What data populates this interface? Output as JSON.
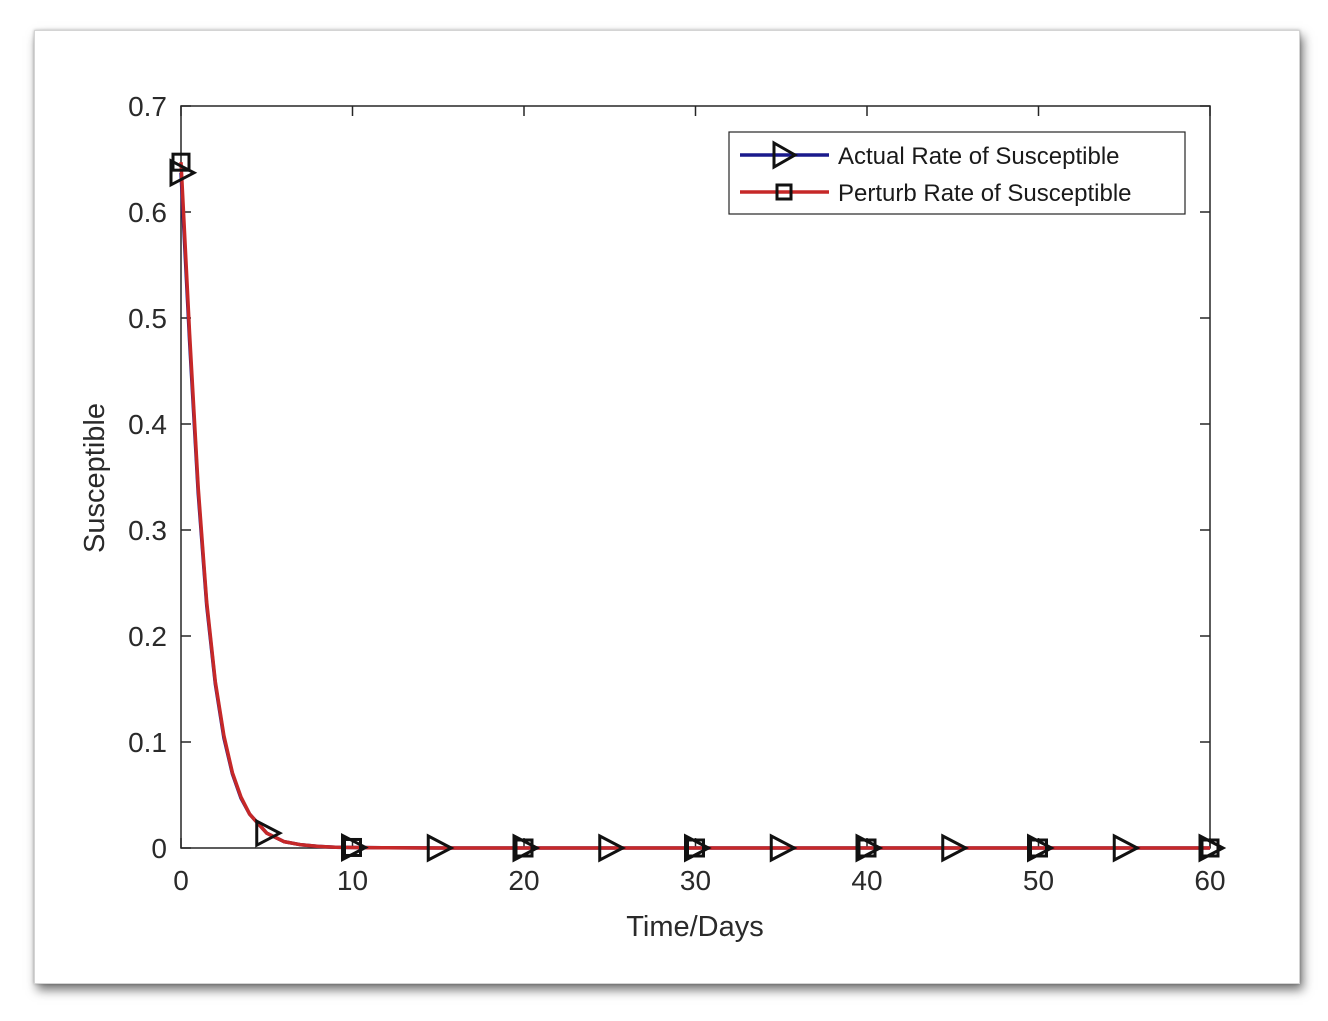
{
  "chart_data": {
    "type": "line",
    "title": "",
    "xlabel": "Time/Days",
    "ylabel": "Susceptible",
    "xlim": [
      0,
      60
    ],
    "ylim": [
      0,
      0.7
    ],
    "xticks": [
      "0",
      "10",
      "20",
      "30",
      "40",
      "50",
      "60"
    ],
    "yticks": [
      "0",
      "0.1",
      "0.2",
      "0.3",
      "0.4",
      "0.5",
      "0.6",
      "0.7"
    ],
    "grid": false,
    "legend_position": "top-right",
    "curve_x": [
      0,
      0.5,
      1,
      1.5,
      2,
      2.5,
      3,
      3.5,
      4,
      5,
      6,
      7,
      8,
      9,
      10,
      12,
      15,
      20,
      25,
      30,
      35,
      40,
      45,
      50,
      55,
      60
    ],
    "series": [
      {
        "name": "Actual Rate of Susceptible",
        "color": "#1a1a8c",
        "marker": "triangle-right",
        "values": [
          0.637,
          0.478,
          0.335,
          0.229,
          0.155,
          0.104,
          0.07,
          0.047,
          0.032,
          0.014,
          0.006,
          0.003,
          0.0015,
          0.0008,
          0.0005,
          0.0002,
          0.0,
          0.0,
          0.0,
          0.0,
          0.0,
          0.0,
          0.0,
          0.0,
          0.0,
          0.0
        ],
        "marker_x": [
          0,
          5,
          10,
          15,
          20,
          25,
          30,
          35,
          40,
          45,
          50,
          55,
          60
        ],
        "marker_y": [
          0.637,
          0.014,
          0.0005,
          0.0,
          0.0,
          0.0,
          0.0,
          0.0,
          0.0,
          0.0,
          0.0,
          0.0,
          0.0
        ]
      },
      {
        "name": "Perturb Rate of Susceptible",
        "color": "#c62828",
        "marker": "square",
        "values": [
          0.647,
          0.485,
          0.34,
          0.232,
          0.157,
          0.106,
          0.071,
          0.048,
          0.032,
          0.014,
          0.006,
          0.003,
          0.0015,
          0.0008,
          0.0005,
          0.0002,
          0.0,
          0.0,
          0.0,
          0.0,
          0.0,
          0.0,
          0.0,
          0.0,
          0.0,
          0.0
        ],
        "marker_x": [
          0,
          10,
          20,
          30,
          40,
          50,
          60
        ],
        "marker_y": [
          0.647,
          0.0005,
          0.0,
          0.0,
          0.0,
          0.0,
          0.0
        ]
      }
    ]
  }
}
